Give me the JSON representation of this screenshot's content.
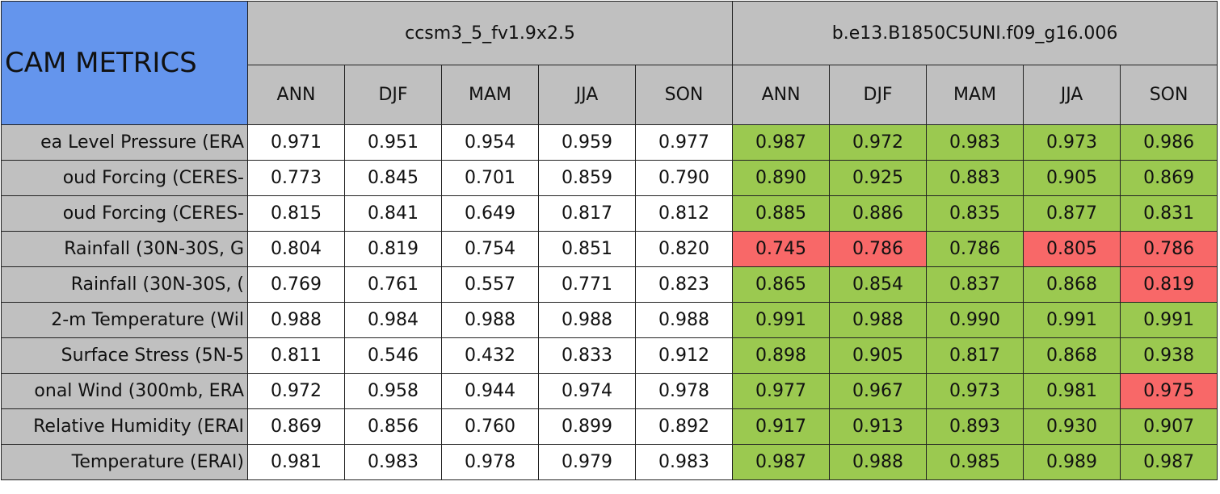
{
  "table": {
    "title": "CAM METRICS",
    "groups": [
      {
        "name": "ccsm3_5_fv1.9x2.5",
        "seasons": [
          "ANN",
          "DJF",
          "MAM",
          "JJA",
          "SON"
        ]
      },
      {
        "name": "b.e13.B1850C5UNI.f09_g16.006",
        "seasons": [
          "ANN",
          "DJF",
          "MAM",
          "JJA",
          "SON"
        ]
      }
    ],
    "colors": {
      "header": "#c0c0c0",
      "title": "#6495ed",
      "plain": "#ffffff",
      "good": "#9bc950",
      "bad": "#f86868"
    },
    "highlighted_group": 1,
    "rows": [
      {
        "label": "ea Level Pressure (ERA",
        "cells": [
          "0.971",
          "0.951",
          "0.954",
          "0.959",
          "0.977",
          "0.987",
          "0.972",
          "0.983",
          "0.973",
          "0.986"
        ],
        "flags": [
          "good",
          "good",
          "good",
          "good",
          "good"
        ]
      },
      {
        "label": "oud Forcing (CERES-",
        "cells": [
          "0.773",
          "0.845",
          "0.701",
          "0.859",
          "0.790",
          "0.890",
          "0.925",
          "0.883",
          "0.905",
          "0.869"
        ],
        "flags": [
          "good",
          "good",
          "good",
          "good",
          "good"
        ]
      },
      {
        "label": "oud Forcing (CERES-",
        "cells": [
          "0.815",
          "0.841",
          "0.649",
          "0.817",
          "0.812",
          "0.885",
          "0.886",
          "0.835",
          "0.877",
          "0.831"
        ],
        "flags": [
          "good",
          "good",
          "good",
          "good",
          "good"
        ]
      },
      {
        "label": "Rainfall (30N-30S, G",
        "cells": [
          "0.804",
          "0.819",
          "0.754",
          "0.851",
          "0.820",
          "0.745",
          "0.786",
          "0.786",
          "0.805",
          "0.786"
        ],
        "flags": [
          "bad",
          "bad",
          "good",
          "bad",
          "bad"
        ]
      },
      {
        "label": "Rainfall (30N-30S, (",
        "cells": [
          "0.769",
          "0.761",
          "0.557",
          "0.771",
          "0.823",
          "0.865",
          "0.854",
          "0.837",
          "0.868",
          "0.819"
        ],
        "flags": [
          "good",
          "good",
          "good",
          "good",
          "bad"
        ]
      },
      {
        "label": "2-m Temperature (Wil",
        "cells": [
          "0.988",
          "0.984",
          "0.988",
          "0.988",
          "0.988",
          "0.991",
          "0.988",
          "0.990",
          "0.991",
          "0.991"
        ],
        "flags": [
          "good",
          "good",
          "good",
          "good",
          "good"
        ]
      },
      {
        "label": "Surface Stress (5N-5",
        "cells": [
          "0.811",
          "0.546",
          "0.432",
          "0.833",
          "0.912",
          "0.898",
          "0.905",
          "0.817",
          "0.868",
          "0.938"
        ],
        "flags": [
          "good",
          "good",
          "good",
          "good",
          "good"
        ]
      },
      {
        "label": "onal Wind (300mb, ERA",
        "cells": [
          "0.972",
          "0.958",
          "0.944",
          "0.974",
          "0.978",
          "0.977",
          "0.967",
          "0.973",
          "0.981",
          "0.975"
        ],
        "flags": [
          "good",
          "good",
          "good",
          "good",
          "bad"
        ]
      },
      {
        "label": "Relative Humidity (ERAI",
        "cells": [
          "0.869",
          "0.856",
          "0.760",
          "0.899",
          "0.892",
          "0.917",
          "0.913",
          "0.893",
          "0.930",
          "0.907"
        ],
        "flags": [
          "good",
          "good",
          "good",
          "good",
          "good"
        ]
      },
      {
        "label": "Temperature (ERAI)",
        "cells": [
          "0.981",
          "0.983",
          "0.978",
          "0.979",
          "0.983",
          "0.987",
          "0.988",
          "0.985",
          "0.989",
          "0.987"
        ],
        "flags": [
          "good",
          "good",
          "good",
          "good",
          "good"
        ]
      }
    ]
  }
}
